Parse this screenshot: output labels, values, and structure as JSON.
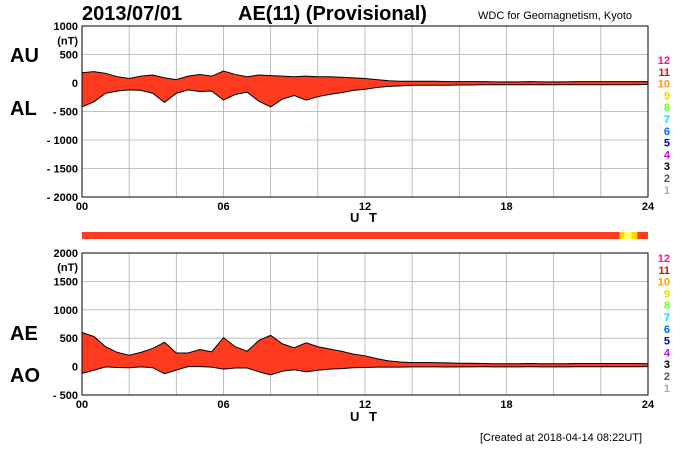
{
  "header": {
    "date": "2013/07/01",
    "title": "AE(11) (Provisional)",
    "source": "WDC for Geomagnetism, Kyoto"
  },
  "footer": {
    "created": "[Created at 2018-04-14 08:22UT]"
  },
  "colors": {
    "fill": "#ff3b1f",
    "outline": "#000000",
    "grid": "#b0b0b0",
    "bar_main": "#ff3b1f",
    "bar_alt": "#ffd800"
  },
  "legend": {
    "items": [
      {
        "label": "12",
        "color": "#ff1493"
      },
      {
        "label": "11",
        "color": "#ff0000"
      },
      {
        "label": "10",
        "color": "#ff9900"
      },
      {
        "label": "9",
        "color": "#dddd00"
      },
      {
        "label": "8",
        "color": "#66ff33"
      },
      {
        "label": "7",
        "color": "#00ddff"
      },
      {
        "label": "6",
        "color": "#0066ff"
      },
      {
        "label": "5",
        "color": "#0000cc"
      },
      {
        "label": "4",
        "color": "#cc00ff"
      },
      {
        "label": "3",
        "color": "#000000"
      },
      {
        "label": "2",
        "color": "#555555"
      },
      {
        "label": "1",
        "color": "#aaaaaa"
      }
    ]
  },
  "chart_data": [
    {
      "type": "area",
      "panel": "AU/AL",
      "side_labels": [
        "AU",
        "AL"
      ],
      "unit": "(nT)",
      "xlabel": "U T",
      "xlim": [
        0,
        24
      ],
      "ylim": [
        -2000,
        1000
      ],
      "y_ticks": [
        {
          "value": 1000,
          "label": "1000"
        },
        {
          "value": 500,
          "label": "500"
        },
        {
          "value": 0,
          "label": "0"
        },
        {
          "value": -500,
          "label": "- 500"
        },
        {
          "value": -1000,
          "label": "- 1000"
        },
        {
          "value": -1500,
          "label": "- 1500"
        },
        {
          "value": -2000,
          "label": "- 2000"
        }
      ],
      "x_ticks": [
        {
          "value": 0,
          "label": "00"
        },
        {
          "value": 6,
          "label": "06"
        },
        {
          "value": 12,
          "label": "12"
        },
        {
          "value": 18,
          "label": "18"
        },
        {
          "value": 24,
          "label": "24"
        }
      ],
      "series": [
        {
          "name": "AU",
          "x": [
            0,
            0.5,
            1,
            1.5,
            2,
            2.5,
            3,
            3.5,
            4,
            4.5,
            5,
            5.5,
            6,
            6.5,
            7,
            7.5,
            8,
            8.5,
            9,
            9.5,
            10,
            10.5,
            11,
            11.5,
            12,
            12.5,
            13,
            13.5,
            14,
            14.5,
            15,
            15.5,
            16,
            16.5,
            17,
            17.5,
            18,
            18.5,
            19,
            19.5,
            20,
            20.5,
            21,
            21.5,
            22,
            22.5,
            23,
            23.5,
            24
          ],
          "values": [
            180,
            200,
            170,
            110,
            80,
            120,
            140,
            90,
            60,
            120,
            150,
            120,
            210,
            150,
            110,
            140,
            130,
            120,
            110,
            120,
            110,
            110,
            100,
            90,
            80,
            60,
            40,
            30,
            30,
            30,
            30,
            25,
            25,
            25,
            25,
            20,
            20,
            20,
            25,
            20,
            20,
            20,
            25,
            25,
            25,
            25,
            25,
            25,
            25
          ]
        },
        {
          "name": "AL",
          "x": [
            0,
            0.5,
            1,
            1.5,
            2,
            2.5,
            3,
            3.5,
            4,
            4.5,
            5,
            5.5,
            6,
            6.5,
            7,
            7.5,
            8,
            8.5,
            9,
            9.5,
            10,
            10.5,
            11,
            11.5,
            12,
            12.5,
            13,
            13.5,
            14,
            14.5,
            15,
            15.5,
            16,
            16.5,
            17,
            17.5,
            18,
            18.5,
            19,
            19.5,
            20,
            20.5,
            21,
            21.5,
            22,
            22.5,
            23,
            23.5,
            24
          ],
          "values": [
            -420,
            -330,
            -180,
            -140,
            -120,
            -130,
            -180,
            -340,
            -180,
            -120,
            -150,
            -140,
            -300,
            -200,
            -160,
            -320,
            -420,
            -280,
            -220,
            -300,
            -240,
            -200,
            -170,
            -130,
            -110,
            -80,
            -60,
            -50,
            -40,
            -40,
            -40,
            -40,
            -35,
            -35,
            -30,
            -30,
            -30,
            -30,
            -30,
            -30,
            -30,
            -30,
            -30,
            -30,
            -30,
            -30,
            -30,
            -30,
            -25
          ]
        }
      ]
    },
    {
      "type": "area",
      "panel": "AE/AO",
      "side_labels": [
        "AE",
        "AO"
      ],
      "unit": "(nT)",
      "xlabel": "U T",
      "xlim": [
        0,
        24
      ],
      "ylim": [
        -500,
        2000
      ],
      "y_ticks": [
        {
          "value": 2000,
          "label": "2000"
        },
        {
          "value": 1500,
          "label": "1500"
        },
        {
          "value": 1000,
          "label": "1000"
        },
        {
          "value": 500,
          "label": "500"
        },
        {
          "value": 0,
          "label": "0"
        },
        {
          "value": -500,
          "label": "- 500"
        }
      ],
      "x_ticks": [
        {
          "value": 0,
          "label": "00"
        },
        {
          "value": 6,
          "label": "06"
        },
        {
          "value": 12,
          "label": "12"
        },
        {
          "value": 18,
          "label": "18"
        },
        {
          "value": 24,
          "label": "24"
        }
      ],
      "series": [
        {
          "name": "AE",
          "x": [
            0,
            0.5,
            1,
            1.5,
            2,
            2.5,
            3,
            3.5,
            4,
            4.5,
            5,
            5.5,
            6,
            6.5,
            7,
            7.5,
            8,
            8.5,
            9,
            9.5,
            10,
            10.5,
            11,
            11.5,
            12,
            12.5,
            13,
            13.5,
            14,
            14.5,
            15,
            15.5,
            16,
            16.5,
            17,
            17.5,
            18,
            18.5,
            19,
            19.5,
            20,
            20.5,
            21,
            21.5,
            22,
            22.5,
            23,
            23.5,
            24
          ],
          "values": [
            600,
            530,
            350,
            250,
            200,
            250,
            320,
            430,
            240,
            240,
            300,
            260,
            510,
            350,
            270,
            460,
            550,
            400,
            330,
            420,
            350,
            310,
            270,
            220,
            190,
            140,
            100,
            80,
            70,
            70,
            70,
            65,
            60,
            60,
            55,
            50,
            50,
            50,
            55,
            50,
            50,
            50,
            55,
            55,
            55,
            55,
            55,
            55,
            50
          ]
        },
        {
          "name": "AO",
          "x": [
            0,
            0.5,
            1,
            1.5,
            2,
            2.5,
            3,
            3.5,
            4,
            4.5,
            5,
            5.5,
            6,
            6.5,
            7,
            7.5,
            8,
            8.5,
            9,
            9.5,
            10,
            10.5,
            11,
            11.5,
            12,
            12.5,
            13,
            13.5,
            14,
            14.5,
            15,
            15.5,
            16,
            16.5,
            17,
            17.5,
            18,
            18.5,
            19,
            19.5,
            20,
            20.5,
            21,
            21.5,
            22,
            22.5,
            23,
            23.5,
            24
          ],
          "values": [
            -120,
            -65,
            -5,
            -15,
            -20,
            -5,
            -20,
            -125,
            -60,
            0,
            0,
            -10,
            -45,
            -25,
            -25,
            -90,
            -145,
            -80,
            -55,
            -90,
            -65,
            -45,
            -35,
            -20,
            -15,
            -10,
            -10,
            -10,
            -5,
            -5,
            -5,
            -8,
            -5,
            -5,
            -3,
            -5,
            -5,
            -5,
            -3,
            -5,
            -5,
            -5,
            -3,
            -3,
            -3,
            -3,
            -3,
            -3,
            0
          ]
        }
      ]
    }
  ],
  "station_bar": {
    "segments": [
      {
        "from": 0,
        "to": 22.8,
        "color": "#ff3b1f"
      },
      {
        "from": 22.8,
        "to": 23.0,
        "color": "#ffd800"
      },
      {
        "from": 23.0,
        "to": 23.3,
        "color": "#ffff66"
      },
      {
        "from": 23.3,
        "to": 23.55,
        "color": "#ffd800"
      },
      {
        "from": 23.55,
        "to": 24,
        "color": "#ff3b1f"
      }
    ]
  }
}
